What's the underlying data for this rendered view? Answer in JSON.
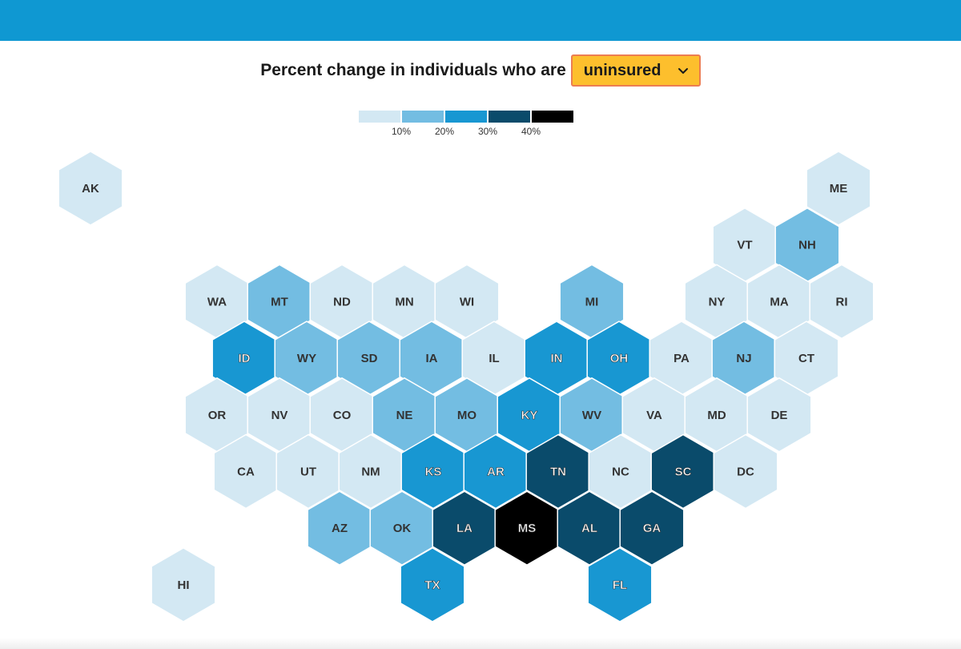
{
  "title": {
    "prefix": "Percent change in individuals who are",
    "selected": "uninsured"
  },
  "icons": {
    "dropdown": "chevron-down-icon"
  },
  "legend": {
    "colors": [
      "#d3e8f3",
      "#73bde2",
      "#1897d2",
      "#0a4b6b",
      "#000000"
    ],
    "labels": [
      "10%",
      "20%",
      "30%",
      "40%"
    ]
  },
  "states": [
    {
      "abbr": "AK",
      "row": 0,
      "col": 0,
      "bin": 0
    },
    {
      "abbr": "ME",
      "row": 0,
      "col": 12,
      "bin": 0
    },
    {
      "abbr": "VT",
      "row": 1,
      "col": 11,
      "bin": 0
    },
    {
      "abbr": "NH",
      "row": 1,
      "col": 12,
      "bin": 1
    },
    {
      "abbr": "WA",
      "row": 2,
      "col": 2,
      "bin": 0
    },
    {
      "abbr": "MT",
      "row": 2,
      "col": 3,
      "bin": 1
    },
    {
      "abbr": "ND",
      "row": 2,
      "col": 4,
      "bin": 0
    },
    {
      "abbr": "MN",
      "row": 2,
      "col": 5,
      "bin": 0
    },
    {
      "abbr": "WI",
      "row": 2,
      "col": 6,
      "bin": 0
    },
    {
      "abbr": "MI",
      "row": 2,
      "col": 8,
      "bin": 1
    },
    {
      "abbr": "NY",
      "row": 2,
      "col": 10,
      "bin": 0
    },
    {
      "abbr": "MA",
      "row": 2,
      "col": 11,
      "bin": 0
    },
    {
      "abbr": "RI",
      "row": 2,
      "col": 12,
      "bin": 0
    },
    {
      "abbr": "ID",
      "row": 3,
      "col": 2,
      "bin": 2
    },
    {
      "abbr": "WY",
      "row": 3,
      "col": 3,
      "bin": 1
    },
    {
      "abbr": "SD",
      "row": 3,
      "col": 4,
      "bin": 1
    },
    {
      "abbr": "IA",
      "row": 3,
      "col": 5,
      "bin": 1
    },
    {
      "abbr": "IL",
      "row": 3,
      "col": 6,
      "bin": 0
    },
    {
      "abbr": "IN",
      "row": 3,
      "col": 7,
      "bin": 2
    },
    {
      "abbr": "OH",
      "row": 3,
      "col": 8,
      "bin": 2
    },
    {
      "abbr": "PA",
      "row": 3,
      "col": 9,
      "bin": 0
    },
    {
      "abbr": "NJ",
      "row": 3,
      "col": 10,
      "bin": 1
    },
    {
      "abbr": "CT",
      "row": 3,
      "col": 11,
      "bin": 0
    },
    {
      "abbr": "OR",
      "row": 4,
      "col": 2,
      "bin": 0
    },
    {
      "abbr": "NV",
      "row": 4,
      "col": 3,
      "bin": 0
    },
    {
      "abbr": "CO",
      "row": 4,
      "col": 4,
      "bin": 0
    },
    {
      "abbr": "NE",
      "row": 4,
      "col": 5,
      "bin": 1
    },
    {
      "abbr": "MO",
      "row": 4,
      "col": 6,
      "bin": 1
    },
    {
      "abbr": "KY",
      "row": 4,
      "col": 7,
      "bin": 2
    },
    {
      "abbr": "WV",
      "row": 4,
      "col": 8,
      "bin": 1
    },
    {
      "abbr": "VA",
      "row": 4,
      "col": 9,
      "bin": 0
    },
    {
      "abbr": "MD",
      "row": 4,
      "col": 10,
      "bin": 0
    },
    {
      "abbr": "DE",
      "row": 4,
      "col": 11,
      "bin": 0
    },
    {
      "abbr": "CA",
      "row": 5,
      "col": 2,
      "bin": 0
    },
    {
      "abbr": "UT",
      "row": 5,
      "col": 3,
      "bin": 0
    },
    {
      "abbr": "NM",
      "row": 5,
      "col": 4,
      "bin": 0
    },
    {
      "abbr": "KS",
      "row": 5,
      "col": 5,
      "bin": 2
    },
    {
      "abbr": "AR",
      "row": 5,
      "col": 6,
      "bin": 2
    },
    {
      "abbr": "TN",
      "row": 5,
      "col": 7,
      "bin": 3
    },
    {
      "abbr": "NC",
      "row": 5,
      "col": 8,
      "bin": 0
    },
    {
      "abbr": "SC",
      "row": 5,
      "col": 9,
      "bin": 3
    },
    {
      "abbr": "DC",
      "row": 5,
      "col": 10,
      "bin": 0
    },
    {
      "abbr": "AZ",
      "row": 6,
      "col": 4,
      "bin": 1
    },
    {
      "abbr": "OK",
      "row": 6,
      "col": 5,
      "bin": 1
    },
    {
      "abbr": "LA",
      "row": 6,
      "col": 6,
      "bin": 3
    },
    {
      "abbr": "MS",
      "row": 6,
      "col": 7,
      "bin": 4
    },
    {
      "abbr": "AL",
      "row": 6,
      "col": 8,
      "bin": 3
    },
    {
      "abbr": "GA",
      "row": 6,
      "col": 9,
      "bin": 3
    },
    {
      "abbr": "HI",
      "row": 7,
      "col": 1,
      "bin": 0
    },
    {
      "abbr": "TX",
      "row": 7,
      "col": 5,
      "bin": 2
    },
    {
      "abbr": "FL",
      "row": 7,
      "col": 8,
      "bin": 2
    }
  ]
}
